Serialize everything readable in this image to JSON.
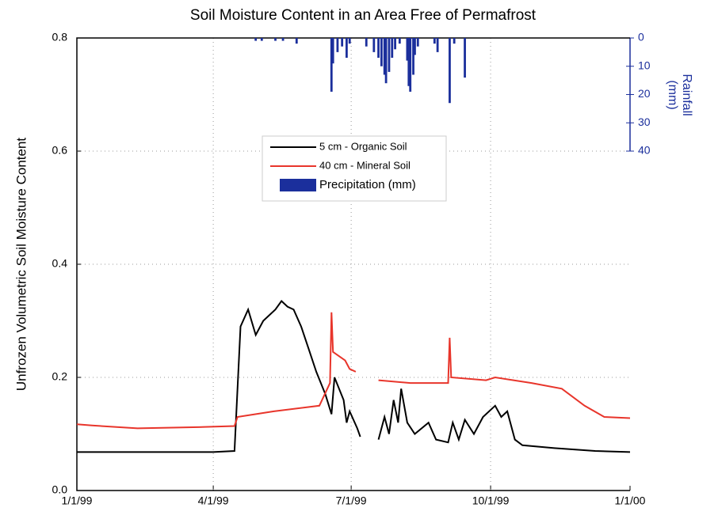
{
  "chart_data": {
    "type": "line",
    "title": "Soil Moisture Content in an Area Free of Permafrost",
    "ylabel": "Unfrozen Volumetric Soil Moisture Content",
    "y2label": [
      "Rainfall",
      "(mm)"
    ],
    "xlim": [
      "1999-01-01",
      "2000-01-01"
    ],
    "xticks": [
      {
        "value": "1999-01-01",
        "label": "1/1/99"
      },
      {
        "value": "1999-04-01",
        "label": "4/1/99"
      },
      {
        "value": "1999-07-01",
        "label": "7/1/99"
      },
      {
        "value": "1999-10-01",
        "label": "10/1/99"
      },
      {
        "value": "2000-01-01",
        "label": "1/1/00"
      }
    ],
    "ylim": [
      0,
      0.8
    ],
    "yticks": [
      {
        "value": 0,
        "label": "0.0"
      },
      0.2,
      0.4,
      0.6,
      0.8
    ],
    "y2lim": [
      0,
      160
    ],
    "y2ticks": [
      0,
      10,
      20,
      30,
      40
    ],
    "y2_inverted": true,
    "grid": true,
    "legend": "upper center",
    "series": [
      {
        "name": "5 cm - Organic Soil",
        "color": "#000000",
        "type": "line",
        "x": [
          "1999-01-01",
          "1999-04-01",
          "1999-04-15",
          "1999-04-19",
          "1999-04-24",
          "1999-04-29",
          "1999-05-04",
          "1999-05-12",
          "1999-05-16",
          "1999-05-20",
          "1999-05-24",
          "1999-05-29",
          "1999-06-03",
          "1999-06-08",
          "1999-06-14",
          "1999-06-18",
          "1999-06-20",
          "1999-06-26",
          "1999-06-28",
          "1999-06-30",
          "1999-07-05",
          "1999-07-07",
          "1999-07-10",
          "1999-07-19",
          "1999-07-23",
          "1999-07-26",
          "1999-07-29",
          "1999-08-01",
          "1999-08-03",
          "1999-08-07",
          "1999-08-12",
          "1999-08-21",
          "1999-08-26",
          "1999-09-03",
          "1999-09-06",
          "1999-09-10",
          "1999-09-14",
          "1999-09-20",
          "1999-09-26",
          "1999-10-04",
          "1999-10-08",
          "1999-10-12",
          "1999-10-17",
          "1999-10-22",
          "1999-11-12",
          "1999-12-09",
          "2000-01-01"
        ],
        "values": [
          0.068,
          0.068,
          0.07,
          0.29,
          0.32,
          0.275,
          0.3,
          0.32,
          0.335,
          0.325,
          0.32,
          0.29,
          0.25,
          0.21,
          0.17,
          0.135,
          0.2,
          0.16,
          0.12,
          0.14,
          0.11,
          0.095,
          null,
          0.09,
          0.13,
          0.1,
          0.16,
          0.12,
          0.18,
          0.12,
          0.1,
          0.12,
          0.09,
          0.085,
          0.12,
          0.09,
          0.125,
          0.1,
          0.13,
          0.15,
          0.13,
          0.14,
          0.09,
          0.08,
          0.075,
          0.07,
          0.068
        ]
      },
      {
        "name": "40 cm - Mineral Soil",
        "color": "#e8352b",
        "type": "line",
        "x": [
          "1999-01-01",
          "1999-01-11",
          "1999-02-10",
          "1999-03-22",
          "1999-04-15",
          "1999-04-17",
          "1999-05-11",
          "1999-06-10",
          "1999-06-17",
          "1999-06-18",
          "1999-06-19",
          "1999-06-27",
          "1999-06-30",
          "1999-07-04",
          "1999-07-10",
          "1999-07-19",
          "1999-08-09",
          "1999-09-03",
          "1999-09-04",
          "1999-09-05",
          "1999-09-28",
          "1999-10-04",
          "1999-10-28",
          "1999-11-17",
          "1999-12-02",
          "1999-12-15",
          "2000-01-01"
        ],
        "values": [
          0.117,
          0.115,
          0.11,
          0.112,
          0.114,
          0.13,
          0.14,
          0.15,
          0.19,
          0.315,
          0.245,
          0.23,
          0.215,
          0.21,
          null,
          0.195,
          0.19,
          0.19,
          0.27,
          0.2,
          0.195,
          0.2,
          0.19,
          0.18,
          0.15,
          0.13,
          0.128
        ]
      },
      {
        "name": "Precipitation (mm)",
        "color": "#1b2f9c",
        "type": "bar",
        "axis": "y2",
        "x": [
          "1999-04-29",
          "1999-05-03",
          "1999-05-12",
          "1999-05-17",
          "1999-05-26",
          "1999-06-18",
          "1999-06-19",
          "1999-06-22",
          "1999-06-25",
          "1999-06-28",
          "1999-06-30",
          "1999-07-11",
          "1999-07-16",
          "1999-07-19",
          "1999-07-21",
          "1999-07-23",
          "1999-07-24",
          "1999-07-26",
          "1999-07-28",
          "1999-07-30",
          "1999-08-02",
          "1999-08-07",
          "1999-08-08",
          "1999-08-09",
          "1999-08-11",
          "1999-08-12",
          "1999-08-14",
          "1999-08-25",
          "1999-08-27",
          "1999-09-04",
          "1999-09-07",
          "1999-09-14"
        ],
        "values": [
          1,
          1,
          1,
          1,
          2,
          19,
          9,
          5,
          3,
          7,
          2,
          3,
          5,
          7,
          10,
          13,
          16,
          12,
          7,
          4,
          2,
          8,
          17,
          19,
          13,
          6,
          3,
          2,
          5,
          23,
          2,
          14
        ]
      }
    ]
  }
}
